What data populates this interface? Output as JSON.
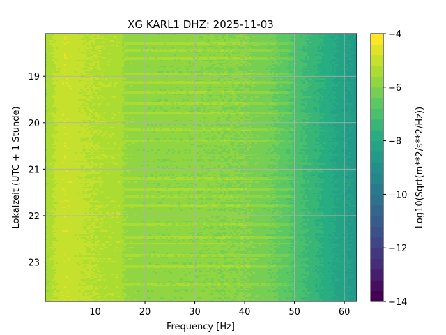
{
  "chart_data": {
    "type": "heatmap",
    "title": "XG KARL1  DHZ: 2025-11-03",
    "xlabel": "Frequency [Hz]",
    "ylabel": "Lokalzeit (UTC + 1 Stunde)",
    "xlim": [
      0,
      62.5
    ],
    "ylim": [
      18.08,
      23.85
    ],
    "x_ticks": [
      10,
      20,
      30,
      40,
      50,
      60
    ],
    "x_tick_labels": [
      "10",
      "20",
      "30",
      "40",
      "50",
      "60"
    ],
    "y_ticks": [
      19,
      20,
      21,
      22,
      23
    ],
    "y_tick_labels": [
      "19",
      "20",
      "21",
      "22",
      "23"
    ],
    "grid": true,
    "colorbar": {
      "label": "Log10(Sqrt(m**2/s**2/Hz))",
      "range": [
        -14,
        -4
      ],
      "ticks": [
        -4,
        -6,
        -8,
        -10,
        -12,
        -14
      ],
      "tick_labels": [
        "−4",
        "−6",
        "−8",
        "−10",
        "−12",
        "−14"
      ],
      "colormap": "viridis",
      "levels": 25
    },
    "frequency_profile": {
      "frequency": [
        0,
        2,
        4,
        8,
        12,
        15,
        16,
        20,
        30,
        40,
        45,
        48,
        50,
        55,
        60,
        62.5
      ],
      "log_amplitude": [
        -5.6,
        -5.1,
        -4.9,
        -5.15,
        -5.3,
        -5.35,
        -5.7,
        -5.85,
        -5.9,
        -6.0,
        -6.3,
        -6.6,
        -6.9,
        -7.6,
        -8.3,
        -8.6
      ]
    },
    "bright_bands_hours": [
      18.3,
      18.45,
      18.62,
      18.95,
      19.12,
      19.35,
      19.58,
      19.8,
      20.15,
      20.4,
      21.2,
      21.45,
      21.6,
      21.78,
      22.2,
      22.45,
      22.48,
      22.6,
      22.85,
      23.1,
      23.48
    ]
  }
}
